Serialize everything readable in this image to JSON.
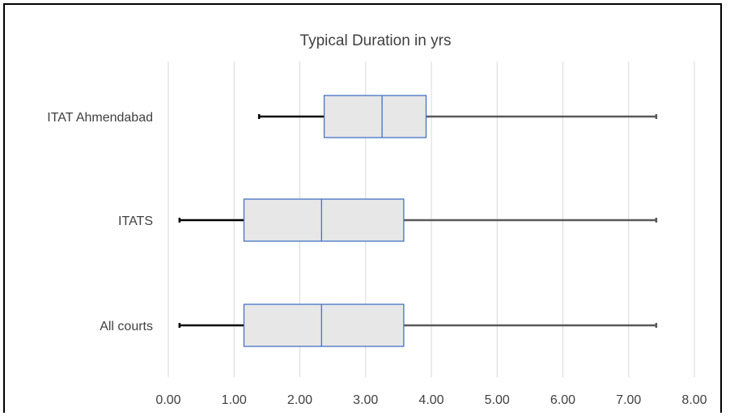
{
  "chart_data": {
    "type": "boxplot",
    "title": "Typical Duration in yrs",
    "xlabel": "",
    "ylabel": "",
    "xlim": [
      0,
      8
    ],
    "x_ticks": [
      "0.00",
      "1.00",
      "2.00",
      "3.00",
      "4.00",
      "5.00",
      "6.00",
      "7.00",
      "8.00"
    ],
    "grid": "vertical",
    "colors": {
      "box_fill": "#e7e7e7",
      "box_edge": "#4472c4",
      "whisker_low": "#000000",
      "whisker_high": "#595959",
      "grid": "#d9d9d9"
    },
    "series": [
      {
        "name": "ITAT Ahmendabad",
        "min": 1.38,
        "q1": 2.37,
        "median": 3.25,
        "q3": 3.92,
        "max": 7.42
      },
      {
        "name": "ITATS",
        "min": 0.17,
        "q1": 1.15,
        "median": 2.33,
        "q3": 3.58,
        "max": 7.42
      },
      {
        "name": "All courts",
        "min": 0.17,
        "q1": 1.15,
        "median": 2.33,
        "q3": 3.58,
        "max": 7.42
      }
    ]
  }
}
